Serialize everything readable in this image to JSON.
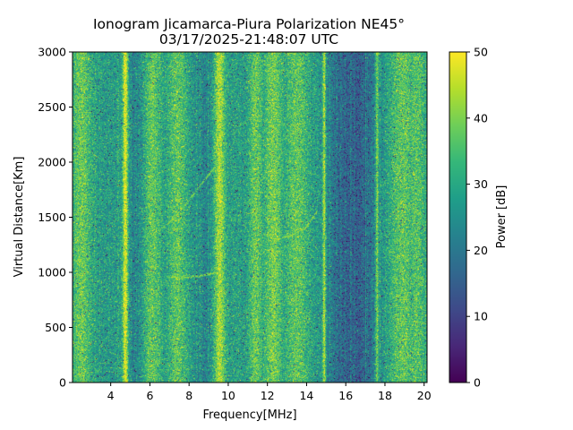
{
  "chart_data": {
    "type": "heatmap",
    "title_line1": "Ionogram Jicamarca-Piura Polarization NE45°",
    "title_line2": "03/17/2025-21:48:07 UTC",
    "xlabel": "Frequency[MHz]",
    "ylabel": "Virtual Distance[Km]",
    "xlim": [
      2.05,
      20.15
    ],
    "ylim": [
      0,
      3000
    ],
    "x_ticks": [
      4,
      6,
      8,
      10,
      12,
      14,
      16,
      18,
      20
    ],
    "x_tick_labels": [
      "4",
      "6",
      "8",
      "10",
      "12",
      "14",
      "16",
      "18",
      "20"
    ],
    "y_ticks": [
      0,
      500,
      1000,
      1500,
      2000,
      2500,
      3000
    ],
    "y_tick_labels": [
      "0",
      "500",
      "1000",
      "1500",
      "2000",
      "2500",
      "3000"
    ],
    "colorbar": {
      "label": "Power [dB]",
      "colormap": "viridis",
      "range": [
        0,
        50
      ],
      "ticks": [
        0,
        10,
        20,
        30,
        40,
        50
      ],
      "tick_labels": [
        "0",
        "10",
        "20",
        "30",
        "40",
        "50"
      ]
    },
    "baseline_power_db": 27,
    "strong_bands": [
      {
        "freq_mhz": 4.75,
        "width_mhz": 0.14,
        "power_db": 49
      },
      {
        "freq_mhz": 9.55,
        "width_mhz": 0.3,
        "power_db": 44
      },
      {
        "freq_mhz": 14.9,
        "width_mhz": 0.08,
        "power_db": 46
      },
      {
        "freq_mhz": 17.6,
        "width_mhz": 0.08,
        "power_db": 44
      },
      {
        "freq_mhz": 11.4,
        "width_mhz": 0.35,
        "power_db": 38
      },
      {
        "freq_mhz": 2.5,
        "width_mhz": 0.5,
        "power_db": 38
      },
      {
        "freq_mhz": 6.1,
        "width_mhz": 0.5,
        "power_db": 37
      },
      {
        "freq_mhz": 7.4,
        "width_mhz": 0.5,
        "power_db": 37
      },
      {
        "freq_mhz": 12.3,
        "width_mhz": 0.5,
        "power_db": 39
      },
      {
        "freq_mhz": 13.5,
        "width_mhz": 0.6,
        "power_db": 37
      },
      {
        "freq_mhz": 18.9,
        "width_mhz": 0.7,
        "power_db": 37
      },
      {
        "freq_mhz": 19.6,
        "width_mhz": 0.5,
        "power_db": 36
      }
    ],
    "weak_bands": [
      {
        "freq_mhz": 16.7,
        "width_mhz": 0.9,
        "power_db": 15
      },
      {
        "freq_mhz": 15.6,
        "width_mhz": 0.6,
        "power_db": 20
      },
      {
        "freq_mhz": 5.3,
        "width_mhz": 0.4,
        "power_db": 21
      },
      {
        "freq_mhz": 8.8,
        "width_mhz": 0.5,
        "power_db": 22
      }
    ],
    "echo_traces": [
      {
        "points": [
          [
            6.9,
            960
          ],
          [
            7.6,
            955
          ],
          [
            8.5,
            970
          ],
          [
            9.4,
            1000
          ]
        ],
        "power_db": 42
      },
      {
        "points": [
          [
            6.2,
            1350
          ],
          [
            7.0,
            1460
          ],
          [
            7.8,
            1620
          ],
          [
            8.5,
            1780
          ],
          [
            9.3,
            1960
          ]
        ],
        "power_db": 40
      },
      {
        "points": [
          [
            12.4,
            1300
          ],
          [
            13.2,
            1340
          ],
          [
            13.9,
            1400
          ],
          [
            14.5,
            1550
          ]
        ],
        "power_db": 42
      }
    ]
  }
}
